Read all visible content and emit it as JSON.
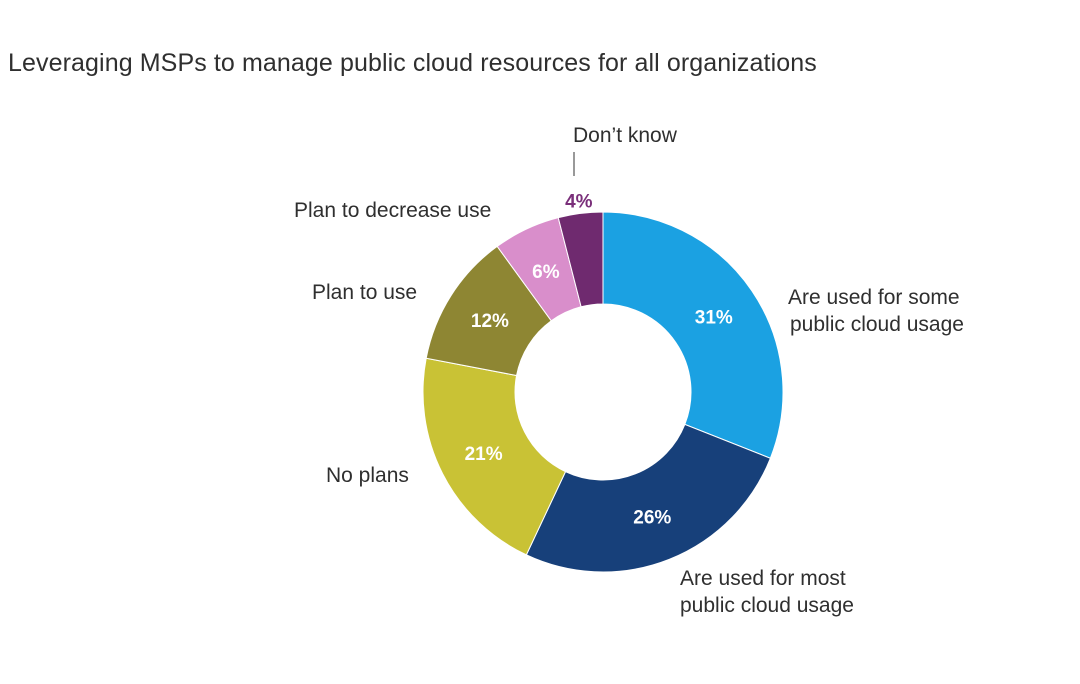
{
  "chart_data": {
    "type": "pie",
    "style": "donut",
    "title": "Leveraging MSPs to manage public cloud resources for all organizations",
    "slices": [
      {
        "label": "Are used for some public cloud usage",
        "value": 31,
        "display": "31%",
        "color": "#1ba1e2",
        "text_color": "#ffffff"
      },
      {
        "label": "Are used for most public cloud usage",
        "value": 26,
        "display": "26%",
        "color": "#17407a",
        "text_color": "#ffffff"
      },
      {
        "label": "No plans",
        "value": 21,
        "display": "21%",
        "color": "#c9c235",
        "text_color": "#ffffff"
      },
      {
        "label": "Plan to use",
        "value": 12,
        "display": "12%",
        "color": "#8e8633",
        "text_color": "#ffffff"
      },
      {
        "label": "Plan to decrease use",
        "value": 6,
        "display": "6%",
        "color": "#d98ecb",
        "text_color": "#ffffff"
      },
      {
        "label": "Don’t know",
        "value": 4,
        "display": "4%",
        "color": "#6f2a6f",
        "text_color": "#7a2f7a"
      }
    ]
  }
}
